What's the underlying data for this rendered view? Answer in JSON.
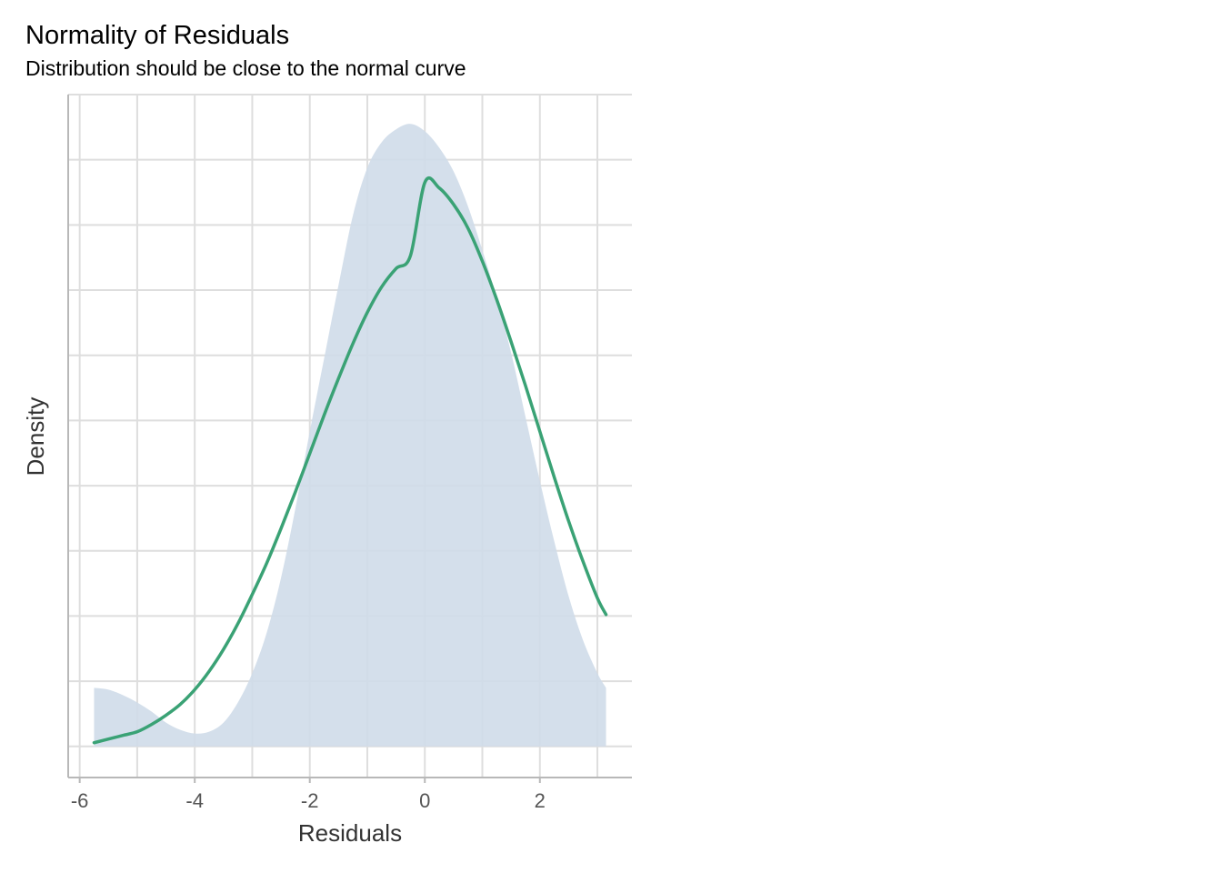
{
  "chart_data": {
    "type": "area",
    "title": "Normality of Residuals",
    "subtitle": "Distribution should be close to the normal curve",
    "xlabel": "Residuals",
    "ylabel": "Density",
    "xlim": [
      -6.2,
      3.6
    ],
    "ylim": [
      -0.017,
      0.356
    ],
    "x_ticks": [
      -6,
      -4,
      -2,
      0,
      2
    ],
    "x_tick_labels": [
      "-6",
      "-4",
      "-2",
      "0",
      "2"
    ],
    "y_gridlines": [
      0,
      0.0356,
      0.0712,
      0.1068,
      0.1424,
      0.178,
      0.2136,
      0.2492,
      0.2848,
      0.3204,
      0.356
    ],
    "y_tick_labels_shown": false,
    "grid": true,
    "colors": {
      "density_fill": "#cfdbe9",
      "normal_curve": "#3aa275",
      "grid": "#dedede",
      "axis": "#b8b8b8"
    },
    "series": [
      {
        "name": "",
        "kind": "density",
        "x": [
          -5.75,
          -5.5,
          -5.25,
          -5.0,
          -4.75,
          -4.5,
          -4.25,
          -4.0,
          -3.75,
          -3.5,
          -3.25,
          -3.0,
          -2.75,
          -2.5,
          -2.25,
          -2.0,
          -1.75,
          -1.5,
          -1.25,
          -1.0,
          -0.75,
          -0.5,
          -0.25,
          0.0,
          0.25,
          0.5,
          0.75,
          1.0,
          1.25,
          1.5,
          1.75,
          2.0,
          2.25,
          2.5,
          2.75,
          3.0,
          3.15
        ],
        "y": [
          0.032,
          0.031,
          0.028,
          0.024,
          0.019,
          0.013,
          0.009,
          0.007,
          0.008,
          0.013,
          0.024,
          0.04,
          0.062,
          0.092,
          0.13,
          0.172,
          0.212,
          0.252,
          0.29,
          0.316,
          0.33,
          0.337,
          0.34,
          0.336,
          0.327,
          0.314,
          0.295,
          0.271,
          0.245,
          0.215,
          0.18,
          0.145,
          0.112,
          0.082,
          0.058,
          0.04,
          0.032
        ]
      },
      {
        "name": "",
        "kind": "normal",
        "x": [
          -5.75,
          -5.5,
          -5.25,
          -5.0,
          -4.75,
          -4.5,
          -4.25,
          -4.0,
          -3.75,
          -3.5,
          -3.25,
          -3.0,
          -2.75,
          -2.5,
          -2.25,
          -2.0,
          -1.75,
          -1.5,
          -1.25,
          -1.0,
          -0.75,
          -0.5,
          -0.25,
          0.0,
          0.25,
          0.5,
          0.75,
          1.0,
          1.25,
          1.5,
          1.75,
          2.0,
          2.25,
          2.5,
          2.75,
          3.0,
          3.15
        ],
        "y": [
          0.002,
          0.004,
          0.006,
          0.008,
          0.012,
          0.017,
          0.023,
          0.031,
          0.041,
          0.053,
          0.067,
          0.083,
          0.1,
          0.119,
          0.139,
          0.16,
          0.181,
          0.201,
          0.22,
          0.237,
          0.251,
          0.261,
          0.268,
          0.308,
          0.305,
          0.296,
          0.283,
          0.265,
          0.244,
          0.221,
          0.197,
          0.172,
          0.147,
          0.123,
          0.101,
          0.081,
          0.072
        ]
      }
    ]
  }
}
